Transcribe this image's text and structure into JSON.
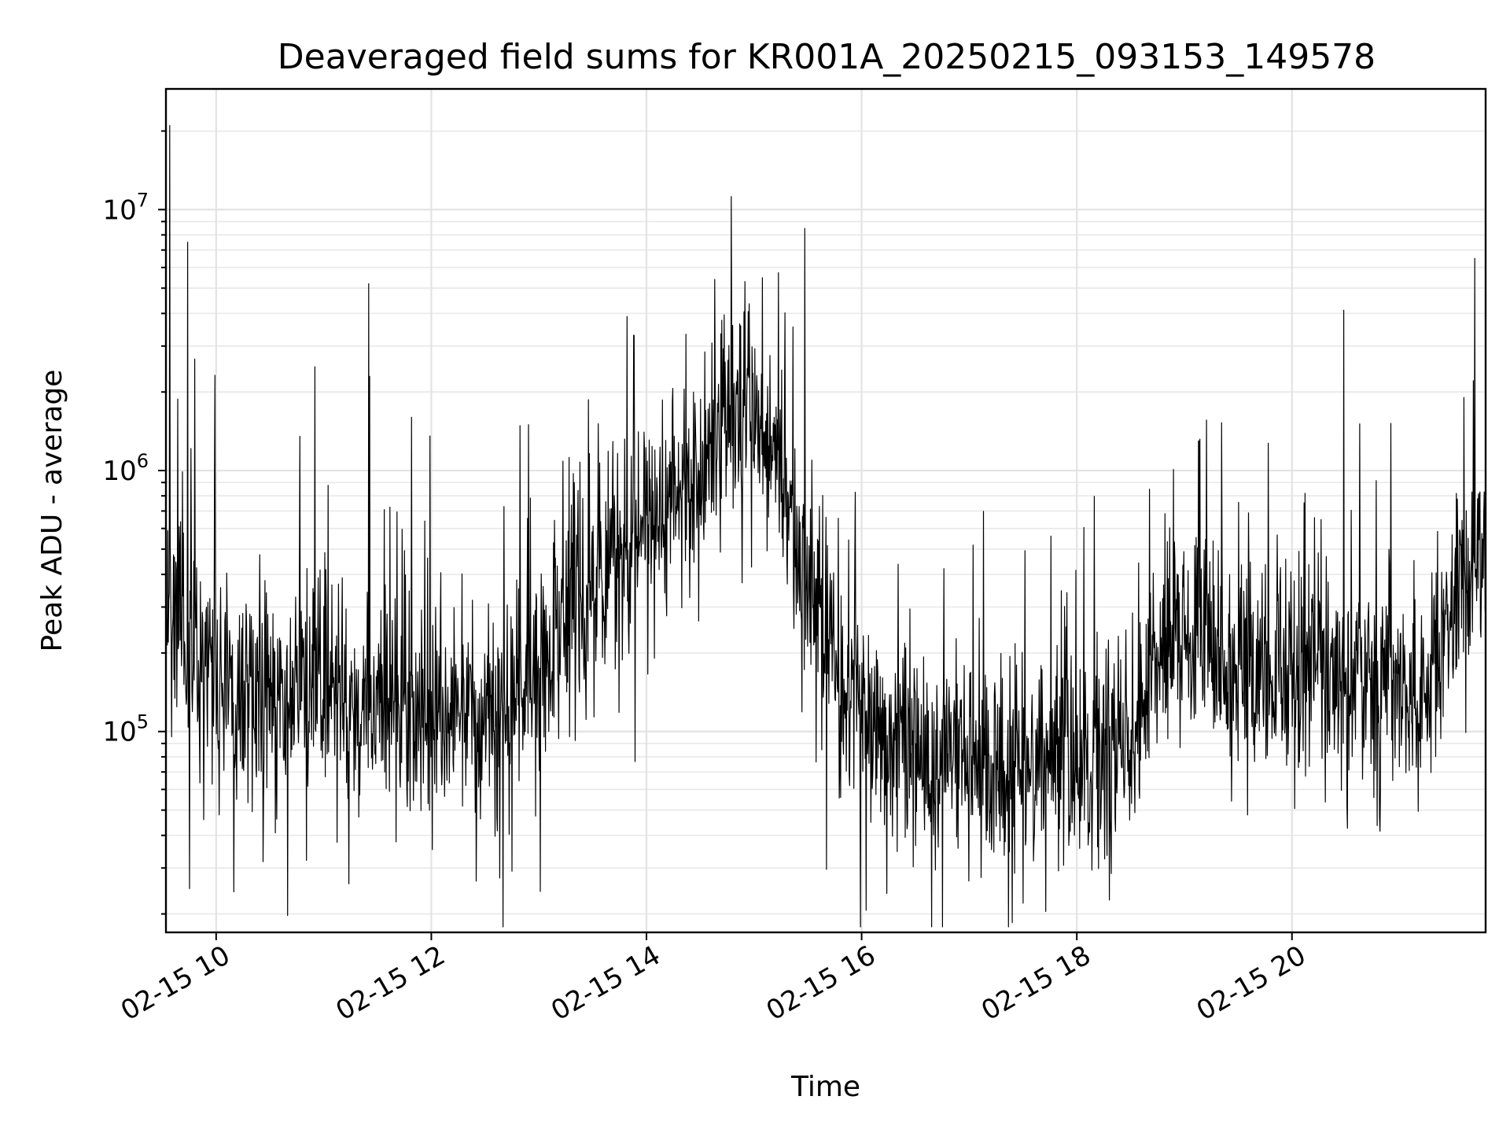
{
  "chart_data": {
    "type": "line",
    "title": "Deaveraged field sums for KR001A_20250215_093153_149578",
    "xlabel": "Time",
    "ylabel": "Peak ADU - average",
    "yscale": "log",
    "ylim": [
      17000,
      29000000
    ],
    "xlim": [
      "2025-02-15 09:32",
      "2025-02-15 21:48"
    ],
    "grid": true,
    "legend": "none",
    "line_color": "#000000",
    "x_ticks": [
      {
        "value": "2025-02-15 10:00",
        "label": "02-15 10"
      },
      {
        "value": "2025-02-15 12:00",
        "label": "02-15 12"
      },
      {
        "value": "2025-02-15 14:00",
        "label": "02-15 14"
      },
      {
        "value": "2025-02-15 16:00",
        "label": "02-15 16"
      },
      {
        "value": "2025-02-15 18:00",
        "label": "02-15 18"
      },
      {
        "value": "2025-02-15 20:00",
        "label": "02-15 20"
      }
    ],
    "y_ticks": [
      {
        "value": 100000,
        "base": "10",
        "exp": "5"
      },
      {
        "value": 1000000,
        "base": "10",
        "exp": "6"
      },
      {
        "value": 10000000,
        "base": "10",
        "exp": "7"
      }
    ],
    "series": [
      {
        "x": [
          "2025-02-15 09:32",
          "2025-02-15 09:40",
          "2025-02-15 09:50",
          "2025-02-15 10:00",
          "2025-02-15 10:15",
          "2025-02-15 10:30",
          "2025-02-15 10:45",
          "2025-02-15 11:00",
          "2025-02-15 11:15",
          "2025-02-15 11:30",
          "2025-02-15 11:45",
          "2025-02-15 12:00",
          "2025-02-15 12:15",
          "2025-02-15 12:30",
          "2025-02-15 12:45",
          "2025-02-15 13:00",
          "2025-02-15 13:15",
          "2025-02-15 13:30",
          "2025-02-15 13:45",
          "2025-02-15 14:00",
          "2025-02-15 14:15",
          "2025-02-15 14:30",
          "2025-02-15 14:45",
          "2025-02-15 15:00",
          "2025-02-15 15:15",
          "2025-02-15 15:30",
          "2025-02-15 15:45",
          "2025-02-15 16:00",
          "2025-02-15 16:15",
          "2025-02-15 16:30",
          "2025-02-15 16:45",
          "2025-02-15 17:00",
          "2025-02-15 17:15",
          "2025-02-15 17:30",
          "2025-02-15 17:45",
          "2025-02-15 18:00",
          "2025-02-15 18:15",
          "2025-02-15 18:30",
          "2025-02-15 18:45",
          "2025-02-15 19:00",
          "2025-02-15 19:15",
          "2025-02-15 19:30",
          "2025-02-15 19:45",
          "2025-02-15 20:00",
          "2025-02-15 20:15",
          "2025-02-15 20:30",
          "2025-02-15 20:45",
          "2025-02-15 21:00",
          "2025-02-15 21:15",
          "2025-02-15 21:30",
          "2025-02-15 21:48"
        ],
        "y": [
          300000,
          250000,
          210000,
          170000,
          150000,
          140000,
          150000,
          150000,
          140000,
          130000,
          130000,
          130000,
          120000,
          110000,
          120000,
          180000,
          270000,
          350000,
          500000,
          700000,
          800000,
          900000,
          1800000,
          1600000,
          900000,
          400000,
          180000,
          110000,
          90000,
          85000,
          80000,
          75000,
          70000,
          72000,
          75000,
          78000,
          80000,
          90000,
          200000,
          280000,
          200000,
          160000,
          150000,
          170000,
          190000,
          160000,
          150000,
          150000,
          130000,
          300000,
          500000
        ]
      }
    ],
    "notable_spikes": [
      {
        "x": "2025-02-15 09:34",
        "y": 21000000
      },
      {
        "x": "2025-02-15 09:44",
        "y": 7500000
      },
      {
        "x": "2025-02-15 10:55",
        "y": 2500000
      },
      {
        "x": "2025-02-15 11:25",
        "y": 5200000
      },
      {
        "x": "2025-02-15 11:49",
        "y": 1600000
      },
      {
        "x": "2025-02-15 13:53",
        "y": 3300000
      },
      {
        "x": "2025-02-15 14:38",
        "y": 5400000
      },
      {
        "x": "2025-02-15 14:55",
        "y": 5300000
      },
      {
        "x": "2025-02-15 17:30",
        "y": 22000
      },
      {
        "x": "2025-02-15 19:08",
        "y": 1300000
      },
      {
        "x": "2025-02-15 21:42",
        "y": 6500000
      }
    ]
  }
}
